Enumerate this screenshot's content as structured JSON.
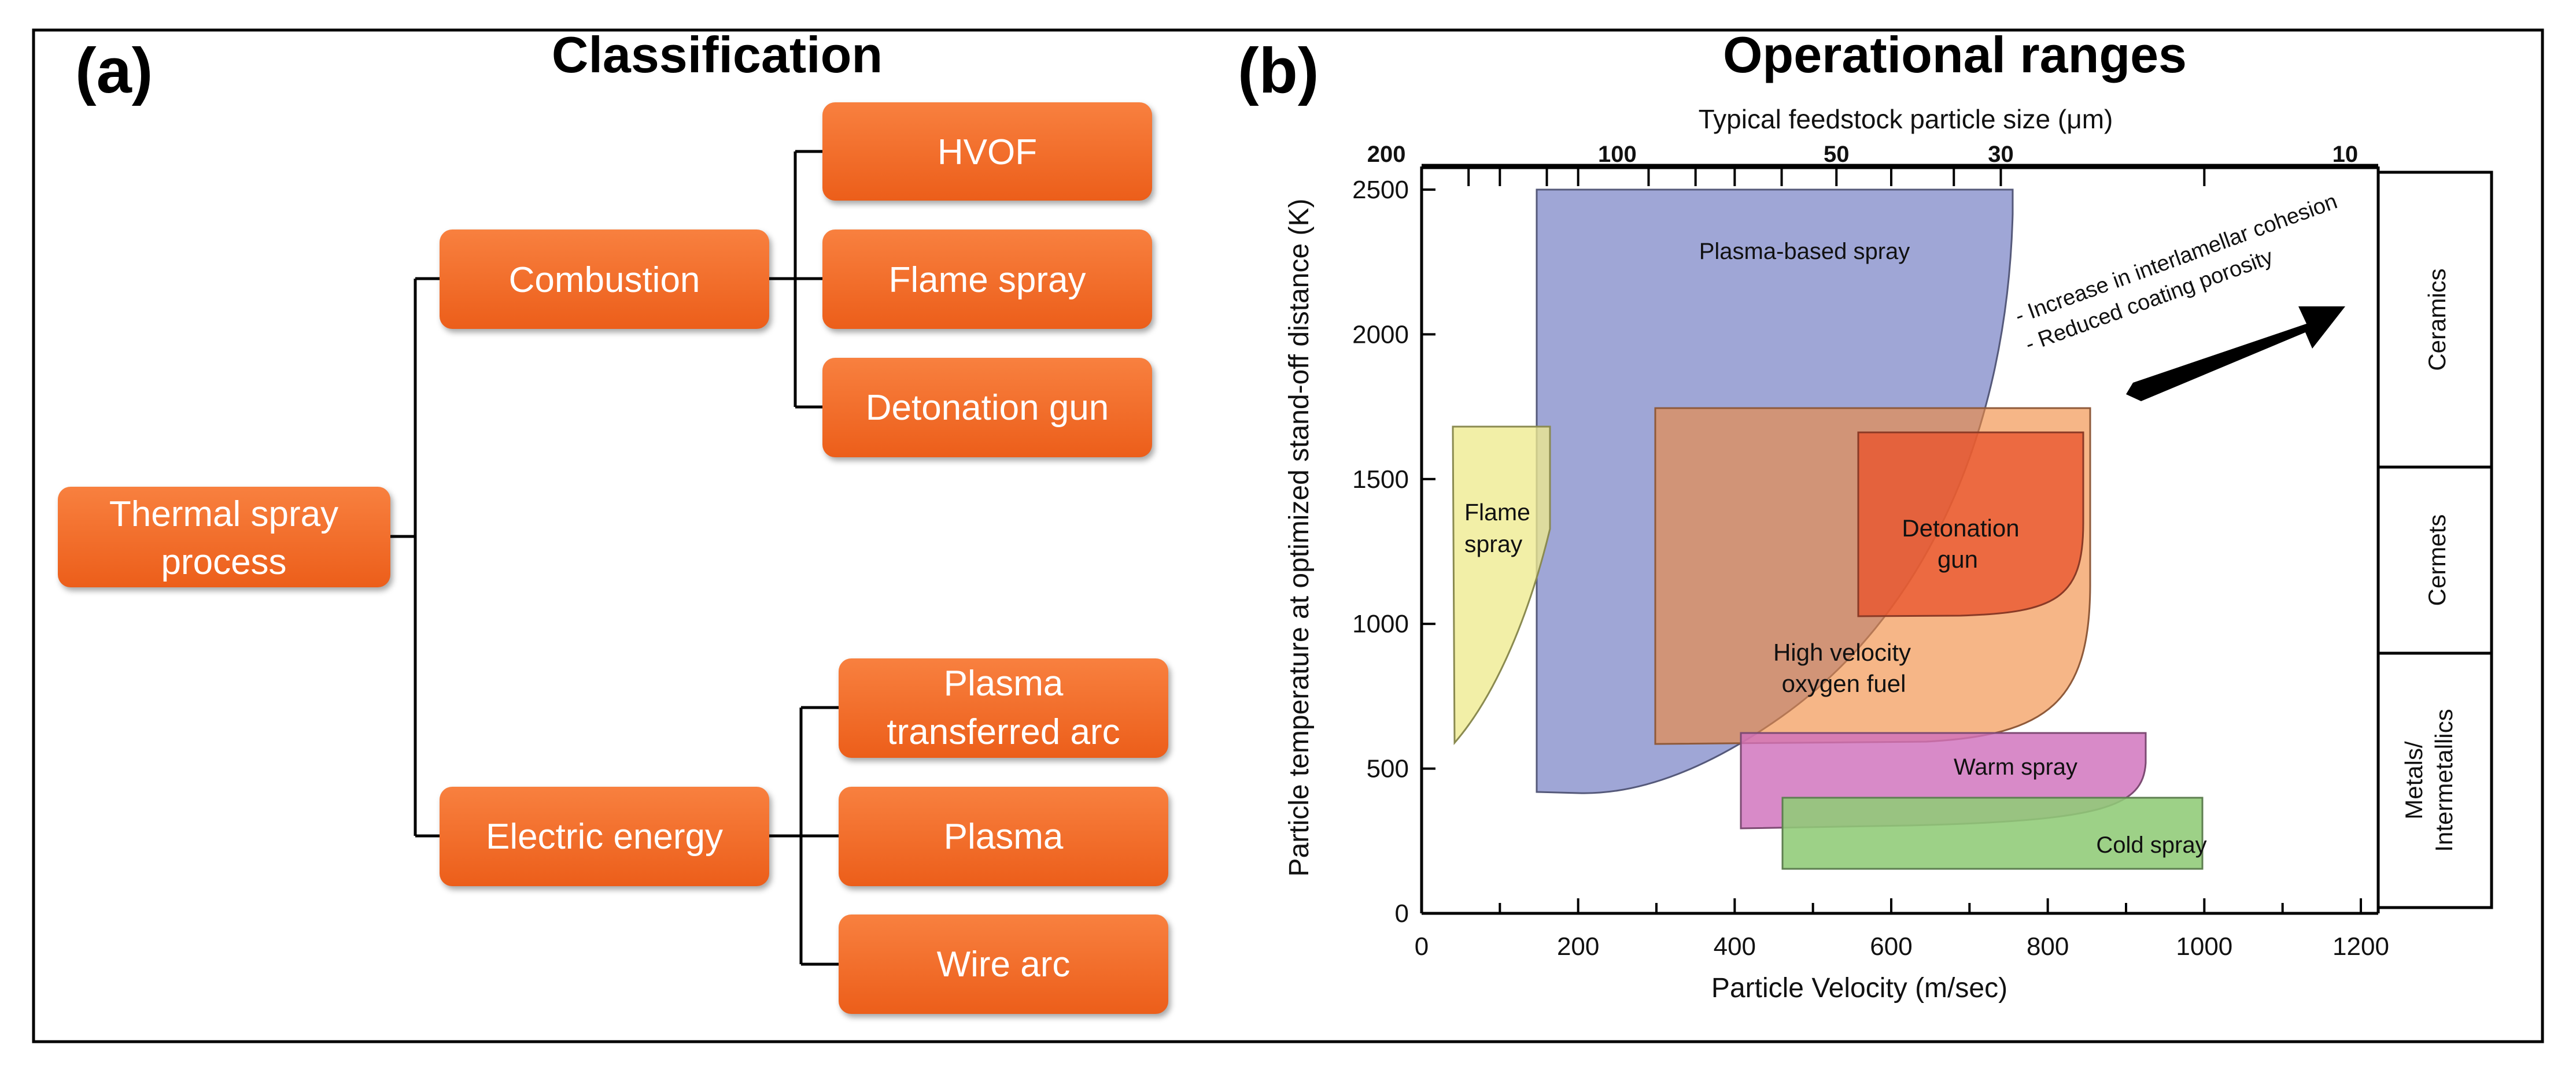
{
  "panel_a": {
    "label": "(a)",
    "title": "Classification",
    "root": [
      "Thermal spray",
      "process"
    ],
    "combustion": {
      "label": "Combustion",
      "children": [
        "HVOF",
        "Flame spray",
        "Detonation gun"
      ]
    },
    "electric": {
      "label": "Electric energy",
      "children": [
        [
          "Plasma",
          "transferred arc"
        ],
        [
          "Plasma"
        ],
        [
          "Wire arc"
        ]
      ]
    }
  },
  "panel_b": {
    "label": "(b)",
    "title": "Operational ranges"
  },
  "colors": {
    "node_orange_top": "#F7793A",
    "node_orange_bottom": "#EE5F1C",
    "plasma": "#7A84C6",
    "hvof": "#F29A5C",
    "detonation": "#E9542D",
    "flame": "#EEEA8E",
    "warm": "#D077BE",
    "cold": "#8FCB76"
  },
  "chart_data": {
    "type": "area",
    "xlabel": "Particle Velocity (m/sec)",
    "ylabel": "Particle temperature at optimized stand-off distance (K)",
    "xlim": [
      0,
      1200
    ],
    "ylim": [
      0,
      2500
    ],
    "x_ticks": [
      0,
      200,
      400,
      600,
      800,
      1000,
      1200
    ],
    "y_ticks": [
      0,
      500,
      1000,
      1500,
      2000,
      2500
    ],
    "top_axis": {
      "label": "Typical feedstock particle size (μm)",
      "ticks": [
        {
          "label": "200",
          "velocity": -45
        },
        {
          "label": "100",
          "velocity": 250
        },
        {
          "label": "50",
          "velocity": 530
        },
        {
          "label": "30",
          "velocity": 740
        },
        {
          "label": "10",
          "velocity": 1180
        }
      ]
    },
    "regions": [
      {
        "name": "Plasma-based spray",
        "x_range": [
          145,
          735
        ],
        "y_range": [
          420,
          2500
        ]
      },
      {
        "name": "Flame spray",
        "x_range": [
          40,
          155
        ],
        "y_range": [
          580,
          1660
        ]
      },
      {
        "name": "High velocity oxygen fuel",
        "x_range": [
          290,
          835
        ],
        "y_range": [
          580,
          1720
        ]
      },
      {
        "name": "Detonation gun",
        "x_range": [
          540,
          835
        ],
        "y_range": [
          1010,
          1640
        ]
      },
      {
        "name": "Warm spray",
        "x_range": [
          400,
          915
        ],
        "y_range": [
          280,
          620
        ]
      },
      {
        "name": "Cold spray",
        "x_range": [
          455,
          1060
        ],
        "y_range": [
          150,
          380
        ]
      }
    ],
    "annotations": [
      "- Increase in interlamellar cohesion",
      "- Reduced coating porosity"
    ],
    "material_bands": [
      {
        "name": "Ceramics",
        "y_range": [
          1550,
          2500
        ]
      },
      {
        "name": "Cermets",
        "y_range": [
          900,
          1550
        ]
      },
      {
        "name": "Metals/ Intermetallics",
        "line1": "Metals/",
        "line2": "Intermetallics",
        "y_range": [
          0,
          900
        ]
      }
    ]
  }
}
